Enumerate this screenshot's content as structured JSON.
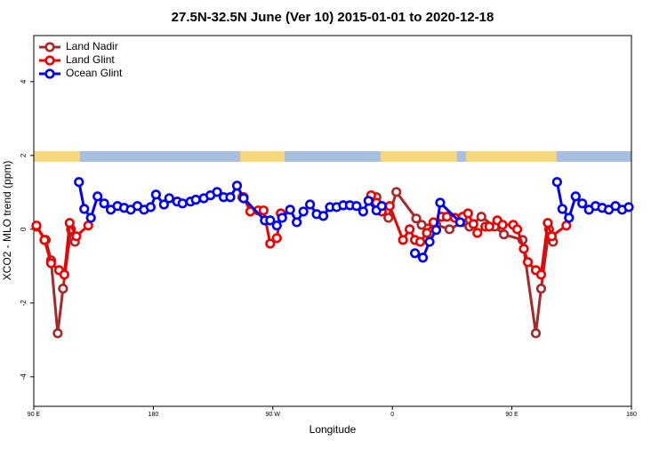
{
  "chart_data": {
    "type": "line",
    "title": "27.5N-32.5N June (Ver 10)   2015-01-01 to 2020-12-18",
    "x_label": "Longitude",
    "y_label": "XCO2 - MLO trend (ppm)",
    "xlim": [
      90,
      540
    ],
    "xticks": [
      {
        "value": 90,
        "label": "90 E"
      },
      180,
      {
        "value": 270,
        "label": "90 W"
      },
      {
        "value": 360,
        "label": "0"
      },
      {
        "value": 450,
        "label": "90 E"
      },
      {
        "value": 540,
        "label": "180"
      }
    ],
    "ylim": [
      -4.8,
      5.25
    ],
    "yticks": [
      4,
      2,
      0,
      -2,
      -4
    ],
    "legend": "top-left",
    "series": [
      {
        "name": "Land Nadir",
        "color": "#a52a2a",
        "x": [
          92,
          99,
          103,
          108,
          112,
          118,
          121,
          null,
          247,
          null,
          344,
          348,
          352,
          357,
          363,
          378,
          382,
          393,
          403,
          413,
          418,
          427,
          437,
          444,
          458,
          468,
          472,
          478,
          481
        ],
        "values": [
          0.07,
          -0.29,
          -0.84,
          -2.82,
          -1.61,
          0,
          -0.34,
          null,
          0.87,
          null,
          0.82,
          0.87,
          0.63,
          0.31,
          1.01,
          0.29,
          0.12,
          0.12,
          0,
          0.19,
          0.07,
          0.34,
          0.07,
          -0.14,
          -0.29,
          -2.82,
          -1.61,
          0,
          -0.34
        ]
      },
      {
        "name": "Land Glint",
        "color": "#ee0000",
        "x": [
          92,
          98,
          103,
          109,
          113,
          117,
          122,
          131,
          null,
          248,
          253,
          259,
          263,
          268,
          273,
          276,
          null,
          344,
          348,
          352,
          358,
          368,
          373,
          377,
          381,
          386,
          391,
          397,
          401,
          407,
          413,
          417,
          421,
          424,
          430,
          433,
          439,
          443,
          451,
          454,
          459,
          462,
          468,
          472,
          477,
          480,
          491
        ],
        "values": [
          0.1,
          -0.29,
          -0.92,
          -1.11,
          -1.23,
          0.17,
          -0.19,
          0.1,
          null,
          0.87,
          0.48,
          0.51,
          0.51,
          -0.39,
          -0.24,
          0.43,
          null,
          0.92,
          0.72,
          0.48,
          0.63,
          -0.29,
          0,
          -0.29,
          -0.34,
          -0.1,
          0.19,
          0.34,
          0.34,
          0.31,
          0.34,
          0.43,
          0.14,
          -0.1,
          0.07,
          0.07,
          0.24,
          0.12,
          0.12,
          0,
          -0.53,
          -0.89,
          -1.11,
          -1.23,
          0.17,
          -0.19,
          0.1
        ]
      },
      {
        "name": "Ocean Glint",
        "color": "#0000ee",
        "x": [
          124,
          128,
          133,
          138,
          143,
          148,
          153,
          158,
          163,
          168,
          173,
          178,
          182,
          188,
          192,
          198,
          202,
          208,
          212,
          218,
          223,
          228,
          233,
          238,
          243,
          248,
          264,
          268,
          273,
          277,
          283,
          288,
          293,
          298,
          303,
          308,
          313,
          318,
          323,
          328,
          333,
          338,
          342,
          348,
          352,
          null,
          377,
          383,
          388,
          393,
          396,
          411,
          null,
          484,
          488,
          493,
          498,
          503,
          508,
          513,
          518,
          523,
          528,
          533,
          538
        ],
        "values": [
          1.28,
          0.55,
          0.31,
          0.89,
          0.7,
          0.53,
          0.63,
          0.58,
          0.53,
          0.63,
          0.53,
          0.6,
          0.94,
          0.67,
          0.84,
          0.75,
          0.7,
          0.75,
          0.8,
          0.84,
          0.92,
          1.01,
          0.87,
          0.87,
          1.18,
          0.84,
          0.24,
          0.24,
          0.1,
          0.31,
          0.53,
          0.19,
          0.48,
          0.67,
          0.41,
          0.36,
          0.6,
          0.6,
          0.65,
          0.65,
          0.63,
          0.48,
          0.77,
          0.51,
          0.63,
          null,
          -0.65,
          -0.77,
          -0.34,
          -0.02,
          0.72,
          0.19,
          null,
          1.28,
          0.55,
          0.31,
          0.89,
          0.7,
          0.53,
          0.63,
          0.58,
          0.53,
          0.63,
          0.53,
          0.6
        ]
      }
    ]
  }
}
